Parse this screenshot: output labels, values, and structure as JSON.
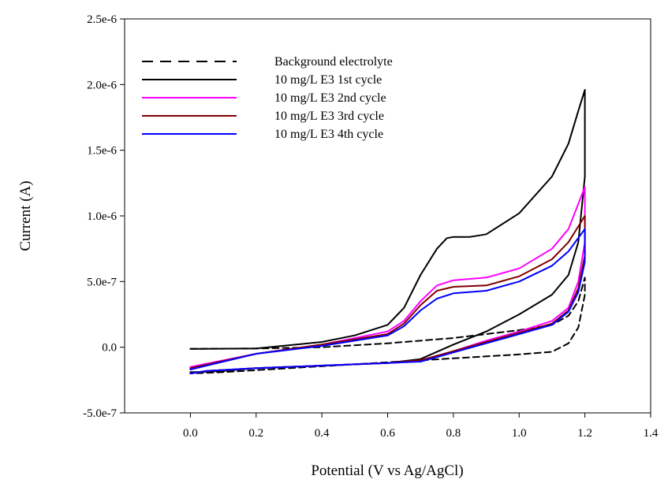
{
  "chart_data": {
    "type": "line",
    "xlabel": "Potential (V vs Ag/AgCl)",
    "ylabel": "Current (A)",
    "xlim": [
      -0.2,
      1.4
    ],
    "ylim": [
      -5e-07,
      2.5e-06
    ],
    "xticks": [
      0.0,
      0.2,
      0.4,
      0.6,
      0.8,
      1.0,
      1.2,
      1.4
    ],
    "xtick_labels": [
      "0.0",
      "0.2",
      "0.4",
      "0.6",
      "0.8",
      "1.0",
      "1.2",
      "1.4"
    ],
    "yticks": [
      -5e-07,
      0.0,
      5e-07,
      1e-06,
      1.5e-06,
      2e-06,
      2.5e-06
    ],
    "ytick_labels": [
      "-5.0e-7",
      "0.0",
      "5.0e-7",
      "1.0e-6",
      "1.5e-6",
      "2.0e-6",
      "2.5e-6"
    ],
    "grid": false,
    "legend_position": "top-left",
    "series": [
      {
        "name": "Background electrolyte",
        "color": "#000000",
        "dash": "dashed",
        "x": [
          0.0,
          0.2,
          0.4,
          0.6,
          0.8,
          0.9,
          1.0,
          1.1,
          1.15,
          1.18,
          1.2,
          1.2,
          1.18,
          1.15,
          1.1,
          1.0,
          0.9,
          0.8,
          0.7,
          0.5,
          0.3,
          0.1,
          0.0
        ],
        "y": [
          -1.3e-08,
          -1e-08,
          0.0,
          3e-08,
          7e-08,
          1e-07,
          1.3e-07,
          1.7e-07,
          2.4e-07,
          3.5e-07,
          5.3e-07,
          4e-07,
          1.5e-07,
          3e-08,
          -3.5e-08,
          -5.5e-08,
          -7e-08,
          -8.5e-08,
          -1e-07,
          -1.3e-07,
          -1.6e-07,
          -1.9e-07,
          -2e-07
        ]
      },
      {
        "name": "10 mg/L E3 1st cycle",
        "color": "#000000",
        "dash": "solid",
        "x": [
          0.0,
          0.2,
          0.4,
          0.5,
          0.6,
          0.65,
          0.7,
          0.75,
          0.78,
          0.8,
          0.85,
          0.9,
          1.0,
          1.1,
          1.15,
          1.18,
          1.2,
          1.2,
          1.18,
          1.15,
          1.1,
          1.0,
          0.9,
          0.8,
          0.7,
          0.6,
          0.4,
          0.2,
          0.1,
          0.02,
          0.0
        ],
        "y": [
          -1.3e-08,
          -1e-08,
          4e-08,
          9e-08,
          1.7e-07,
          3e-07,
          5.5e-07,
          7.5e-07,
          8.3e-07,
          8.4e-07,
          8.4e-07,
          8.6e-07,
          1.02e-06,
          1.3e-06,
          1.55e-06,
          1.8e-06,
          1.96e-06,
          1.3e-06,
          8e-07,
          5.5e-07,
          4e-07,
          2.5e-07,
          1.2e-07,
          2e-08,
          -9e-08,
          -1.2e-07,
          -1.4e-07,
          -1.6e-07,
          -1.8e-07,
          -1.9e-07,
          -1.9e-07
        ]
      },
      {
        "name": "10 mg/L E3 2nd cycle",
        "color": "#ff00ff",
        "dash": "solid",
        "x": [
          0.0,
          0.2,
          0.4,
          0.6,
          0.65,
          0.7,
          0.75,
          0.8,
          0.9,
          1.0,
          1.1,
          1.15,
          1.2,
          1.2,
          1.18,
          1.15,
          1.1,
          1.0,
          0.9,
          0.8,
          0.7,
          0.6,
          0.4,
          0.2,
          0.05,
          0.0
        ],
        "y": [
          -1.5e-07,
          -5e-08,
          2e-08,
          1.2e-07,
          2e-07,
          3.5e-07,
          4.7e-07,
          5.1e-07,
          5.3e-07,
          6e-07,
          7.5e-07,
          9e-07,
          1.22e-06,
          8e-07,
          5e-07,
          3e-07,
          2e-07,
          1.2e-07,
          5e-08,
          -3e-08,
          -1e-07,
          -1.2e-07,
          -1.4e-07,
          -1.6e-07,
          -1.8e-07,
          -2e-07
        ]
      },
      {
        "name": "10 mg/L E3 3rd cycle",
        "color": "#800000",
        "dash": "solid",
        "x": [
          0.0,
          0.2,
          0.4,
          0.6,
          0.65,
          0.7,
          0.75,
          0.8,
          0.9,
          1.0,
          1.1,
          1.15,
          1.2,
          1.2,
          1.18,
          1.15,
          1.1,
          1.0,
          0.9,
          0.8,
          0.7,
          0.6,
          0.4,
          0.2,
          0.05,
          0.0
        ],
        "y": [
          -1.6e-07,
          -5e-08,
          2e-08,
          1e-07,
          1.8e-07,
          3.2e-07,
          4.3e-07,
          4.6e-07,
          4.7e-07,
          5.4e-07,
          6.7e-07,
          8e-07,
          1e-06,
          7e-07,
          4.5e-07,
          2.8e-07,
          1.8e-07,
          1.1e-07,
          4e-08,
          -3e-08,
          -1e-07,
          -1.2e-07,
          -1.4e-07,
          -1.6e-07,
          -1.8e-07,
          -2e-07
        ]
      },
      {
        "name": "10 mg/L E3 4th cycle",
        "color": "#0000ff",
        "dash": "solid",
        "x": [
          0.0,
          0.2,
          0.4,
          0.6,
          0.65,
          0.7,
          0.75,
          0.8,
          0.9,
          1.0,
          1.1,
          1.15,
          1.2,
          1.2,
          1.18,
          1.15,
          1.1,
          1.0,
          0.9,
          0.8,
          0.7,
          0.6,
          0.4,
          0.2,
          0.05,
          0.0
        ],
        "y": [
          -1.7e-07,
          -5e-08,
          1e-08,
          9e-08,
          1.6e-07,
          2.8e-07,
          3.7e-07,
          4.1e-07,
          4.3e-07,
          5e-07,
          6.2e-07,
          7.3e-07,
          9e-07,
          6.5e-07,
          4.2e-07,
          2.7e-07,
          1.7e-07,
          1e-07,
          3e-08,
          -4e-08,
          -1.1e-07,
          -1.2e-07,
          -1.4e-07,
          -1.6e-07,
          -1.8e-07,
          -2e-07
        ]
      }
    ]
  }
}
